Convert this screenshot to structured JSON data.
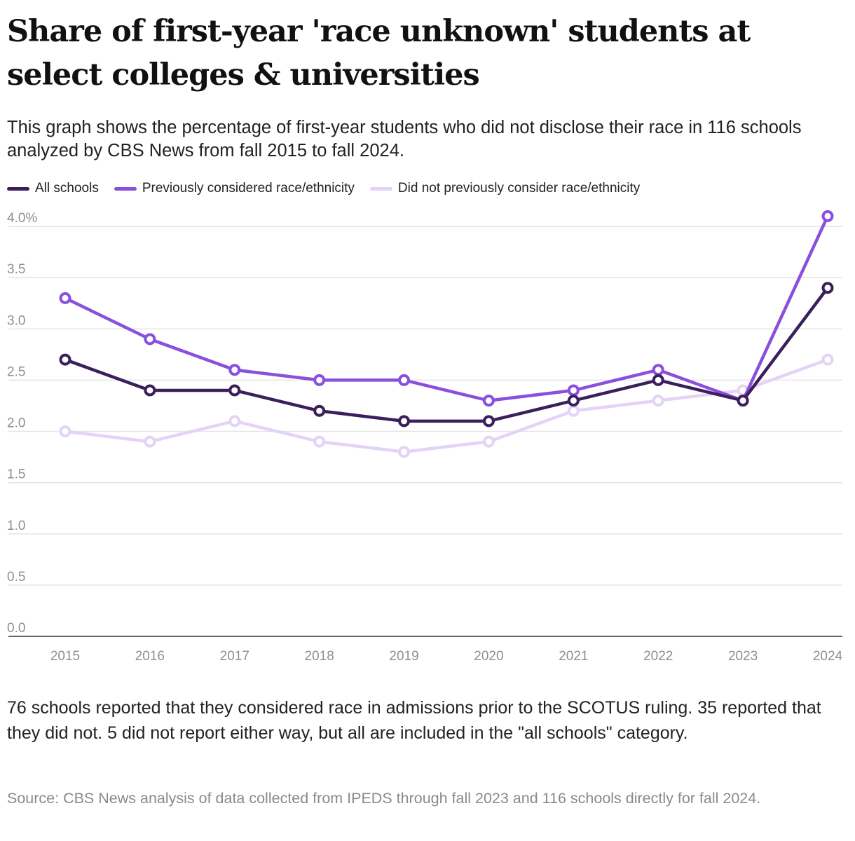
{
  "title": "Share of first-year 'race unknown' students at select colleges & universities",
  "subtitle": "This graph shows the percentage of first-year students who did not disclose their race in 116 schools analyzed by CBS News from fall 2015 to fall 2024.",
  "note": "76 schools reported that they considered race in admissions prior to the SCOTUS ruling. 35 reported that they did not. 5 did not report either way, but all are included in the \"all schools\" category.",
  "source": "Source: CBS News analysis of data collected from IPEDS through fall 2023 and 116 schools directly for fall 2024.",
  "legend": [
    {
      "label": "All schools",
      "color": "#3a1f5c"
    },
    {
      "label": "Previously considered race/ethnicity",
      "color": "#8a4fdc"
    },
    {
      "label": "Did not previously consider race/ethnicity",
      "color": "#e3d4f7"
    }
  ],
  "chart_data": {
    "type": "line",
    "x": [
      "2015",
      "2016",
      "2017",
      "2018",
      "2019",
      "2020",
      "2021",
      "2022",
      "2023",
      "2024"
    ],
    "ylim": [
      0,
      4
    ],
    "yticks": [
      {
        "value": 0,
        "label": "0.0"
      },
      {
        "value": 0.5,
        "label": "0.5"
      },
      {
        "value": 1,
        "label": "1.0"
      },
      {
        "value": 1.5,
        "label": "1.5"
      },
      {
        "value": 2,
        "label": "2.0"
      },
      {
        "value": 2.5,
        "label": "2.5"
      },
      {
        "value": 3,
        "label": "3.0"
      },
      {
        "value": 3.5,
        "label": "3.5"
      },
      {
        "value": 4,
        "label": "4.0%"
      }
    ],
    "grid": true,
    "legend_position": "top-left",
    "series": [
      {
        "name": "Did not previously consider race/ethnicity",
        "color": "#e3d4f7",
        "values": [
          2.0,
          1.9,
          2.1,
          1.9,
          1.8,
          1.9,
          2.2,
          2.3,
          2.4,
          2.7
        ]
      },
      {
        "name": "Previously considered race/ethnicity",
        "color": "#8a4fdc",
        "values": [
          3.3,
          2.9,
          2.6,
          2.5,
          2.5,
          2.3,
          2.4,
          2.6,
          2.3,
          4.1
        ]
      },
      {
        "name": "All schools",
        "color": "#3a1f5c",
        "values": [
          2.7,
          2.4,
          2.4,
          2.2,
          2.1,
          2.1,
          2.3,
          2.5,
          2.3,
          3.4
        ]
      }
    ]
  }
}
